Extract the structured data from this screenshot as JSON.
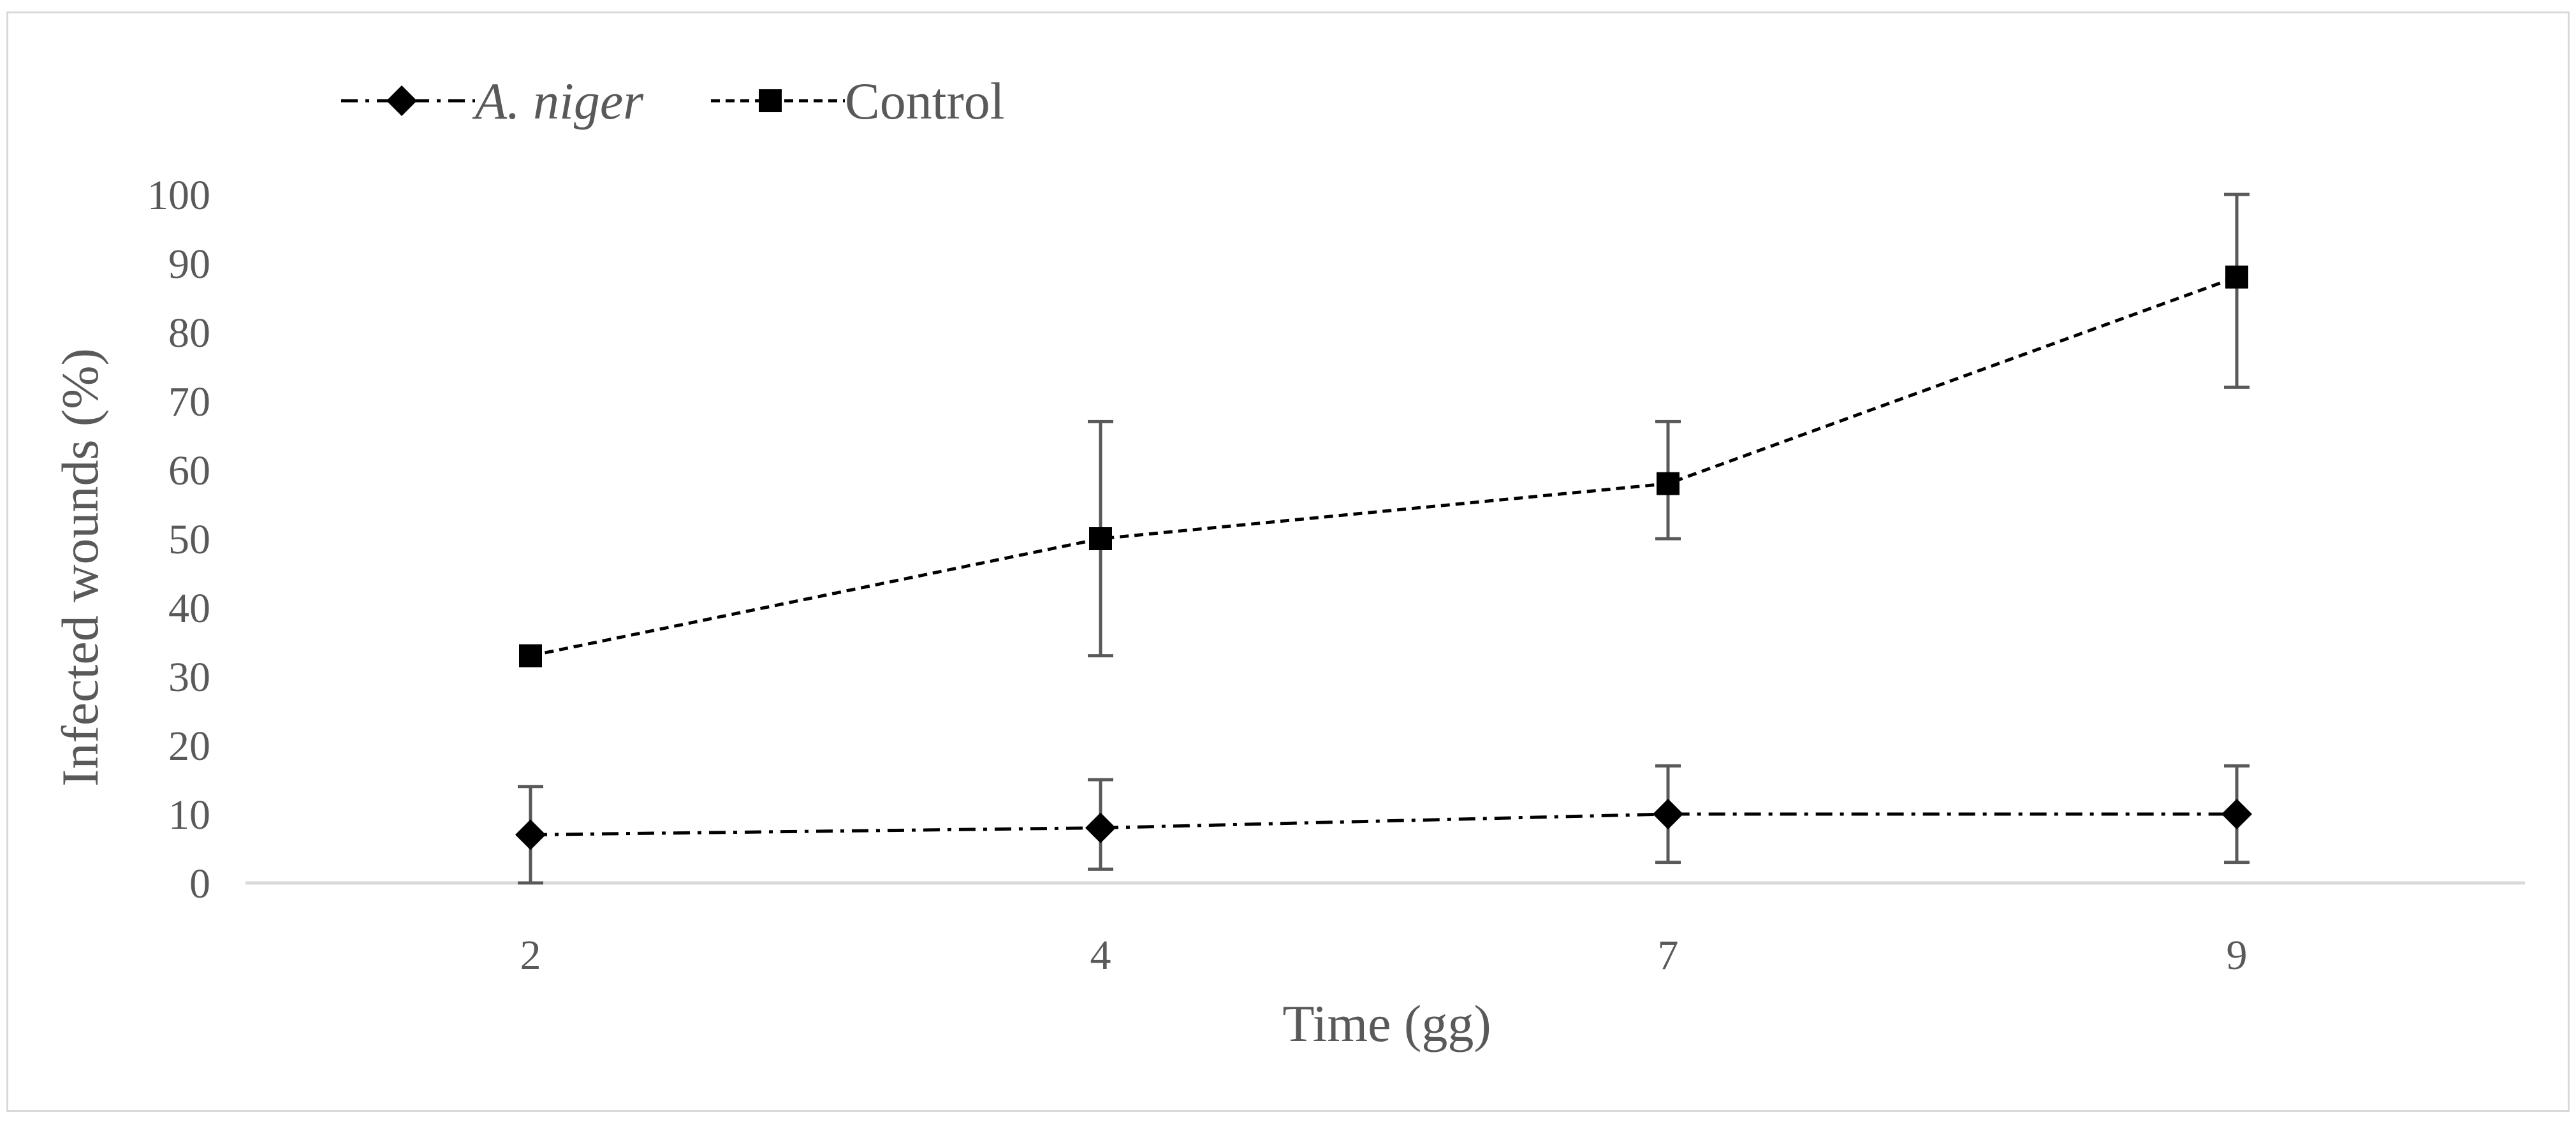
{
  "chart_data": {
    "type": "line",
    "title": "",
    "xlabel": "Time (gg)",
    "ylabel": "Infected wounds (%)",
    "categories": [
      "2",
      "4",
      "7",
      "9"
    ],
    "ylim": [
      0,
      100
    ],
    "yticks": [
      "0",
      "10",
      "20",
      "30",
      "40",
      "50",
      "60",
      "70",
      "80",
      "90",
      "100"
    ],
    "grid": false,
    "legend_position": "top-left",
    "series": [
      {
        "name": "A. niger",
        "marker": "diamond",
        "line_style": "dash-dot",
        "color": "#000000",
        "values": [
          7,
          8,
          10,
          10
        ],
        "error_low": [
          0,
          2,
          3,
          3
        ],
        "error_high": [
          14,
          15,
          17,
          17
        ]
      },
      {
        "name": "Control",
        "marker": "square",
        "line_style": "dashed",
        "color": "#000000",
        "values": [
          33,
          50,
          58,
          88
        ],
        "error_low": [
          33,
          33,
          50,
          72
        ],
        "error_high": [
          33,
          67,
          67,
          100
        ]
      }
    ]
  }
}
